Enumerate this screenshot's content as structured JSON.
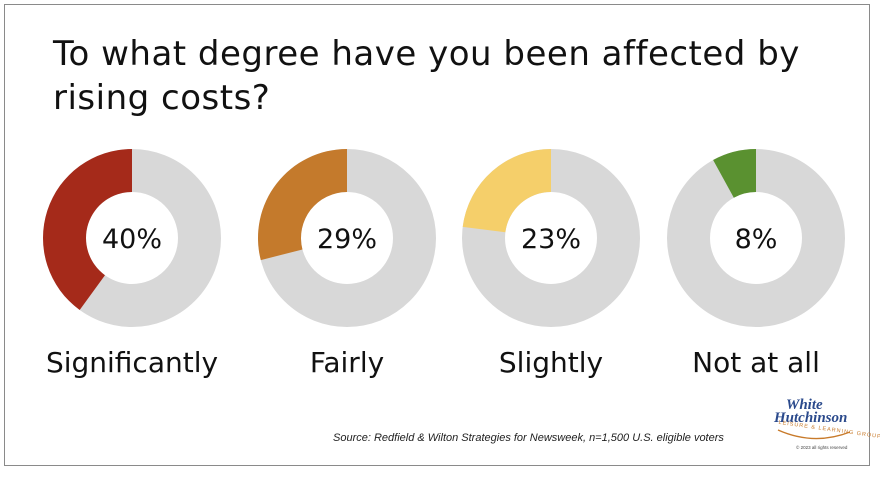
{
  "title": "To what degree have you been affected by rising costs?",
  "chart_data": {
    "type": "pie",
    "subtype": "donut",
    "title": "To what degree have you been affected by rising costs?",
    "categories": [
      "Significantly",
      "Fairly",
      "Slightly",
      "Not at all"
    ],
    "values": [
      40,
      29,
      23,
      8
    ],
    "value_labels": [
      "40%",
      "29%",
      "23%",
      "8%"
    ],
    "unit": "%",
    "colors": [
      "#a52a1a",
      "#c47a2c",
      "#f5cf6a",
      "#5a9130"
    ],
    "remainder_color": "#d8d8d8"
  },
  "source": "Source: Redfield & Wilton Strategies for Newsweek, n=1,500  U.S. eligible voters",
  "logo": {
    "line1": "White",
    "line2": "Hutchinson",
    "tagline": "LEISURE & LEARNING GROUP",
    "copyright": "© 2023 all rights reserved"
  }
}
